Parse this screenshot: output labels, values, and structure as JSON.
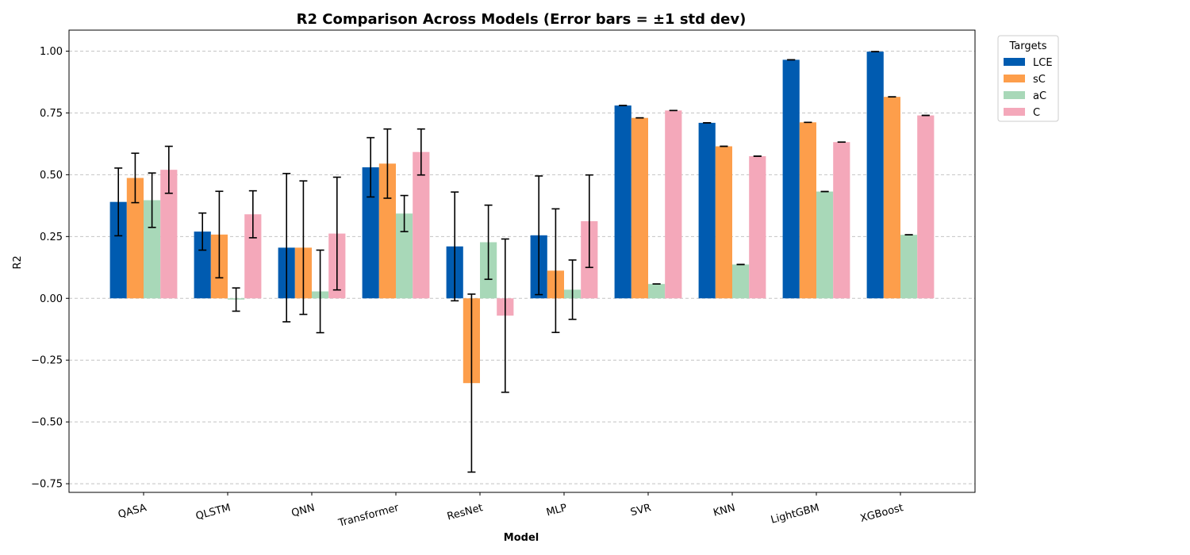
{
  "chart_data": {
    "type": "bar",
    "title": "R2 Comparison Across Models (Error bars = ±1 std dev)",
    "xlabel": "Model",
    "ylabel": "R2",
    "ylim": [
      -0.785,
      1.085
    ],
    "yticks": [
      -0.75,
      -0.5,
      -0.25,
      0.0,
      0.25,
      0.5,
      0.75,
      1.0
    ],
    "ytick_labels": [
      "−0.75",
      "−0.50",
      "−0.25",
      "0.00",
      "0.25",
      "0.50",
      "0.75",
      "1.00"
    ],
    "grid": "horizontal-dashed",
    "legend": {
      "title": "Targets",
      "placement": "outside-top-right"
    },
    "categories": [
      "QASA",
      "QLSTM",
      "QNN",
      "Transformer",
      "ResNet",
      "MLP",
      "SVR",
      "KNN",
      "LightGBM",
      "XGBoost"
    ],
    "series": [
      {
        "name": "LCE",
        "color": "#005bb0",
        "values": [
          0.39,
          0.27,
          0.205,
          0.53,
          0.21,
          0.255,
          0.78,
          0.71,
          0.965,
          0.998
        ],
        "errors": [
          0.137,
          0.075,
          0.3,
          0.12,
          0.22,
          0.24,
          0.0,
          0.0,
          0.0,
          0.0
        ]
      },
      {
        "name": "sC",
        "color": "#fd9e4b",
        "values": [
          0.487,
          0.258,
          0.205,
          0.545,
          -0.343,
          0.112,
          0.73,
          0.615,
          0.712,
          0.815
        ],
        "errors": [
          0.1,
          0.175,
          0.27,
          0.14,
          0.36,
          0.25,
          0.0,
          0.0,
          0.0,
          0.0
        ]
      },
      {
        "name": "aC",
        "color": "#a8d8b8",
        "values": [
          0.397,
          -0.005,
          0.028,
          0.343,
          0.227,
          0.035,
          0.058,
          0.137,
          0.432,
          0.257
        ],
        "errors": [
          0.11,
          0.047,
          0.167,
          0.073,
          0.15,
          0.12,
          0.0,
          0.0,
          0.0,
          0.0
        ]
      },
      {
        "name": "C",
        "color": "#f4a8ba",
        "values": [
          0.52,
          0.34,
          0.262,
          0.592,
          -0.07,
          0.312,
          0.76,
          0.575,
          0.632,
          0.74
        ],
        "errors": [
          0.095,
          0.095,
          0.228,
          0.093,
          0.31,
          0.187,
          0.0,
          0.0,
          0.0,
          0.0
        ]
      }
    ]
  }
}
